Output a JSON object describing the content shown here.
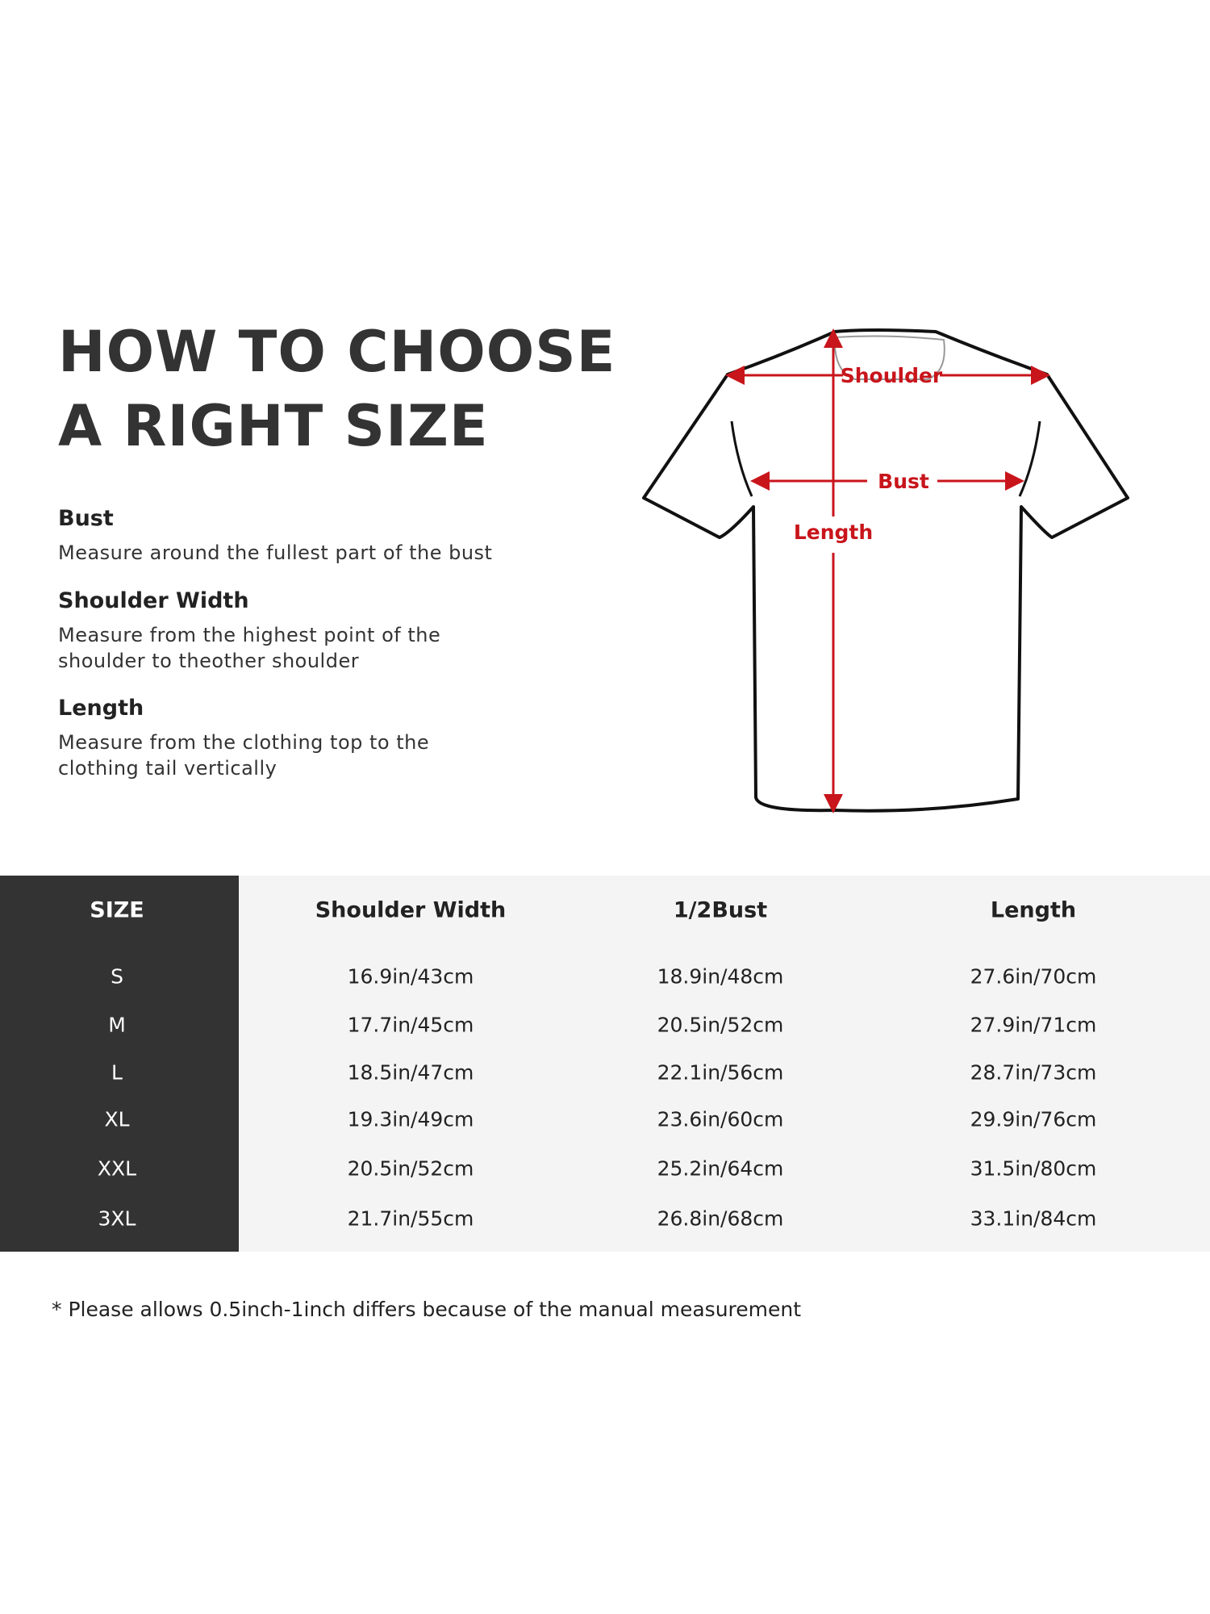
{
  "title_lines": [
    "HOW TO CHOOSE",
    "A RIGHT SIZE"
  ],
  "guide": [
    {
      "heading": "Bust",
      "desc": [
        "Measure around the fullest part of the bust"
      ]
    },
    {
      "heading": "Shoulder Width",
      "desc": [
        "Measure from the highest point of the",
        "shoulder to theother shoulder"
      ]
    },
    {
      "heading": "Length",
      "desc": [
        "Measure from the clothing top to the",
        "clothing tail vertically"
      ]
    }
  ],
  "diagram": {
    "shoulder_label": "Shoulder",
    "bust_label": "Bust",
    "length_label": "Length",
    "accent": "#c8151b"
  },
  "table": {
    "headers": [
      "SIZE",
      "Shoulder Width",
      "1/2Bust",
      "Length"
    ],
    "rows": [
      [
        "S",
        "16.9in/43cm",
        "18.9in/48cm",
        "27.6in/70cm"
      ],
      [
        "M",
        "17.7in/45cm",
        "20.5in/52cm",
        "27.9in/71cm"
      ],
      [
        "L",
        "18.5in/47cm",
        "22.1in/56cm",
        "28.7in/73cm"
      ],
      [
        "XL",
        "19.3in/49cm",
        "23.6in/60cm",
        "29.9in/76cm"
      ],
      [
        "XXL",
        "20.5in/52cm",
        "25.2in/64cm",
        "31.5in/80cm"
      ],
      [
        "3XL",
        "21.7in/55cm",
        "26.8in/68cm",
        "33.1in/84cm"
      ]
    ]
  },
  "footnote": "* Please allows 0.5inch-1inch differs because of the  manual measurement"
}
